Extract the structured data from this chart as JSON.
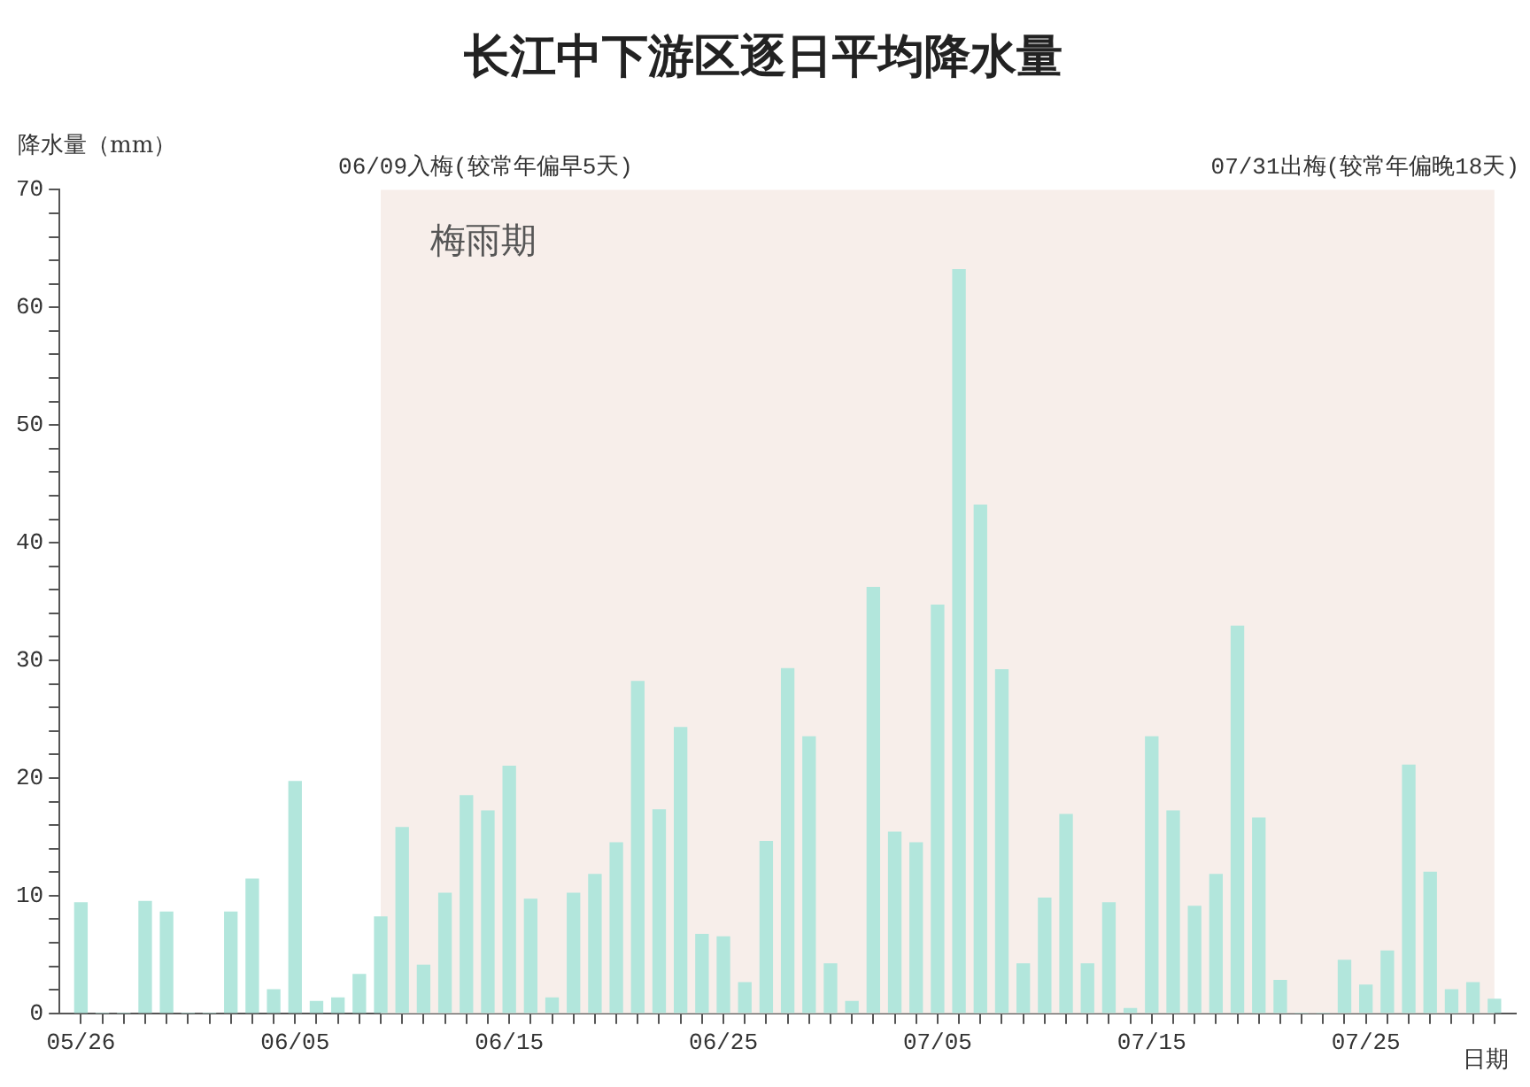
{
  "chart_data": {
    "type": "bar",
    "title": "长江中下游区逐日平均降水量",
    "xlabel": "日期",
    "ylabel": "降水量（mm）",
    "x": [
      "--05-26",
      "--05-27",
      "--05-28",
      "--05-29",
      "--05-30",
      "--05-31",
      "--06-01",
      "--06-02",
      "--06-03",
      "--06-04",
      "--06-05",
      "--06-06",
      "--06-07",
      "--06-08",
      "--06-09",
      "--06-10",
      "--06-11",
      "--06-12",
      "--06-13",
      "--06-14",
      "--06-15",
      "--06-16",
      "--06-17",
      "--06-18",
      "--06-19",
      "--06-20",
      "--06-21",
      "--06-22",
      "--06-23",
      "--06-24",
      "--06-25",
      "--06-26",
      "--06-27",
      "--06-28",
      "--06-29",
      "--06-30",
      "--07-01",
      "--07-02",
      "--07-03",
      "--07-04",
      "--07-05",
      "--07-06",
      "--07-07",
      "--07-08",
      "--07-09",
      "--07-10",
      "--07-11",
      "--07-12",
      "--07-13",
      "--07-14",
      "--07-15",
      "--07-16",
      "--07-17",
      "--07-18",
      "--07-19",
      "--07-20",
      "--07-21",
      "--07-22",
      "--07-23",
      "--07-24",
      "--07-25",
      "--07-26",
      "--07-27",
      "--07-28",
      "--07-29",
      "--07-30",
      "--07-31"
    ],
    "values": [
      9.4,
      0,
      0,
      9.5,
      8.6,
      0,
      0,
      8.6,
      11.4,
      2,
      19.7,
      1,
      1.3,
      3.3,
      8.2,
      15.8,
      4.1,
      10.2,
      18.5,
      17.2,
      21,
      9.7,
      1.3,
      10.2,
      11.8,
      14.5,
      28.2,
      17.3,
      24.3,
      6.7,
      6.5,
      2.6,
      14.6,
      29.3,
      23.5,
      4.2,
      1,
      36.2,
      15.4,
      14.5,
      34.7,
      63.2,
      43.2,
      29.2,
      4.2,
      9.8,
      16.9,
      4.2,
      9.4,
      0.4,
      23.5,
      17.2,
      9.1,
      11.8,
      32.9,
      16.6,
      2.8,
      0,
      0,
      4.5,
      2.4,
      5.3,
      21.1,
      12,
      2,
      2.6,
      1.2
    ],
    "color": "#b2e6dc",
    "xlim": [
      "--05-25",
      "--08-01"
    ],
    "xticks": [
      {
        "value": "--05-26",
        "label": "05/26"
      },
      {
        "value": "--05-27",
        "label": null
      },
      {
        "value": "--05-28",
        "label": null
      },
      {
        "value": "--05-29",
        "label": null
      },
      {
        "value": "--05-30",
        "label": null
      },
      {
        "value": "--05-31",
        "label": null
      },
      {
        "value": "--06-01",
        "label": null
      },
      {
        "value": "--06-02",
        "label": null
      },
      {
        "value": "--06-03",
        "label": null
      },
      {
        "value": "--06-04",
        "label": null
      },
      {
        "value": "--06-05",
        "label": "06/05"
      },
      {
        "value": "--06-06",
        "label": null
      },
      {
        "value": "--06-07",
        "label": null
      },
      {
        "value": "--06-08",
        "label": null
      },
      {
        "value": "--06-09",
        "label": null
      },
      {
        "value": "--06-10",
        "label": null
      },
      {
        "value": "--06-11",
        "label": null
      },
      {
        "value": "--06-12",
        "label": null
      },
      {
        "value": "--06-13",
        "label": null
      },
      {
        "value": "--06-14",
        "label": null
      },
      {
        "value": "--06-15",
        "label": "06/15"
      },
      {
        "value": "--06-16",
        "label": null
      },
      {
        "value": "--06-17",
        "label": null
      },
      {
        "value": "--06-18",
        "label": null
      },
      {
        "value": "--06-19",
        "label": null
      },
      {
        "value": "--06-20",
        "label": null
      },
      {
        "value": "--06-21",
        "label": null
      },
      {
        "value": "--06-22",
        "label": null
      },
      {
        "value": "--06-23",
        "label": null
      },
      {
        "value": "--06-24",
        "label": null
      },
      {
        "value": "--06-25",
        "label": "06/25"
      },
      {
        "value": "--06-26",
        "label": null
      },
      {
        "value": "--06-27",
        "label": null
      },
      {
        "value": "--06-28",
        "label": null
      },
      {
        "value": "--06-29",
        "label": null
      },
      {
        "value": "--06-30",
        "label": null
      },
      {
        "value": "--07-01",
        "label": null
      },
      {
        "value": "--07-02",
        "label": null
      },
      {
        "value": "--07-03",
        "label": null
      },
      {
        "value": "--07-04",
        "label": null
      },
      {
        "value": "--07-05",
        "label": "07/05"
      },
      {
        "value": "--07-06",
        "label": null
      },
      {
        "value": "--07-07",
        "label": null
      },
      {
        "value": "--07-08",
        "label": null
      },
      {
        "value": "--07-09",
        "label": null
      },
      {
        "value": "--07-10",
        "label": null
      },
      {
        "value": "--07-11",
        "label": null
      },
      {
        "value": "--07-12",
        "label": null
      },
      {
        "value": "--07-13",
        "label": null
      },
      {
        "value": "--07-14",
        "label": null
      },
      {
        "value": "--07-15",
        "label": "07/15"
      },
      {
        "value": "--07-16",
        "label": null
      },
      {
        "value": "--07-17",
        "label": null
      },
      {
        "value": "--07-18",
        "label": null
      },
      {
        "value": "--07-19",
        "label": null
      },
      {
        "value": "--07-20",
        "label": null
      },
      {
        "value": "--07-21",
        "label": null
      },
      {
        "value": "--07-22",
        "label": null
      },
      {
        "value": "--07-23",
        "label": null
      },
      {
        "value": "--07-24",
        "label": null
      },
      {
        "value": "--07-25",
        "label": "07/25"
      },
      {
        "value": "--07-26",
        "label": null
      },
      {
        "value": "--07-27",
        "label": null
      },
      {
        "value": "--07-28",
        "label": null
      },
      {
        "value": "--07-29",
        "label": null
      },
      {
        "value": "--07-30",
        "label": null
      },
      {
        "value": "--07-31",
        "label": null
      }
    ],
    "ylim": [
      0,
      70
    ],
    "yticks": [
      0,
      {
        "value": 2,
        "label": null
      },
      {
        "value": 4,
        "label": null
      },
      {
        "value": 6,
        "label": null
      },
      {
        "value": 8,
        "label": null
      },
      10,
      {
        "value": 12,
        "label": null
      },
      {
        "value": 14,
        "label": null
      },
      {
        "value": 16,
        "label": null
      },
      {
        "value": 18,
        "label": null
      },
      20,
      {
        "value": 22,
        "label": null
      },
      {
        "value": 24,
        "label": null
      },
      {
        "value": 26,
        "label": null
      },
      {
        "value": 28,
        "label": null
      },
      30,
      {
        "value": 32,
        "label": null
      },
      {
        "value": 34,
        "label": null
      },
      {
        "value": 36,
        "label": null
      },
      {
        "value": 38,
        "label": null
      },
      40,
      {
        "value": 42,
        "label": null
      },
      {
        "value": 44,
        "label": null
      },
      {
        "value": 46,
        "label": null
      },
      {
        "value": 48,
        "label": null
      },
      50,
      {
        "value": 52,
        "label": null
      },
      {
        "value": 54,
        "label": null
      },
      {
        "value": 56,
        "label": null
      },
      {
        "value": 58,
        "label": null
      },
      60,
      {
        "value": 62,
        "label": null
      },
      {
        "value": 64,
        "label": null
      },
      {
        "value": 66,
        "label": null
      },
      {
        "value": 68,
        "label": null
      },
      70
    ],
    "bands": [
      {
        "axis": "x",
        "from": "--06-09",
        "to": "--07-31",
        "label": "梅雨期",
        "color": "#f7eeea"
      }
    ],
    "annotations": [
      "06/09入梅(较常年偏早5天)",
      "07/31出梅(较常年偏晚18天)"
    ],
    "grid": false,
    "legend": false
  }
}
